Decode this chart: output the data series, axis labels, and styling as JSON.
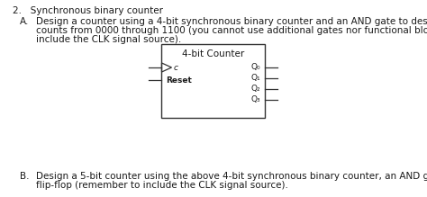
{
  "title": "2.   Synchronous binary counter",
  "section_a_label": "A.",
  "section_a_line1": "Design a counter using a 4-bit synchronous binary counter and an AND gate to design a counter that",
  "section_a_line2": "counts from 0000 through 1100 (you cannot use additional gates nor functional blocks, remember to",
  "section_a_line3": "include the CLK signal source).",
  "section_b_label": "B.",
  "section_b_line1": "Design a 5-bit counter using the above 4-bit synchronous binary counter, an AND gate and a single D",
  "section_b_line2": "flip-flop (remember to include the CLK signal source).",
  "box_title": "4-bit Counter",
  "input_clock": "c",
  "input_reset": "Reset",
  "outputs": [
    "Q₀",
    "Q₁",
    "Q₂",
    "Q₃"
  ],
  "bg_color": "#ffffff",
  "text_color": "#1a1a1a",
  "box_color": "#333333",
  "font_size_main": 7.5,
  "font_size_box_title": 7.5,
  "font_size_box_labels": 6.5
}
